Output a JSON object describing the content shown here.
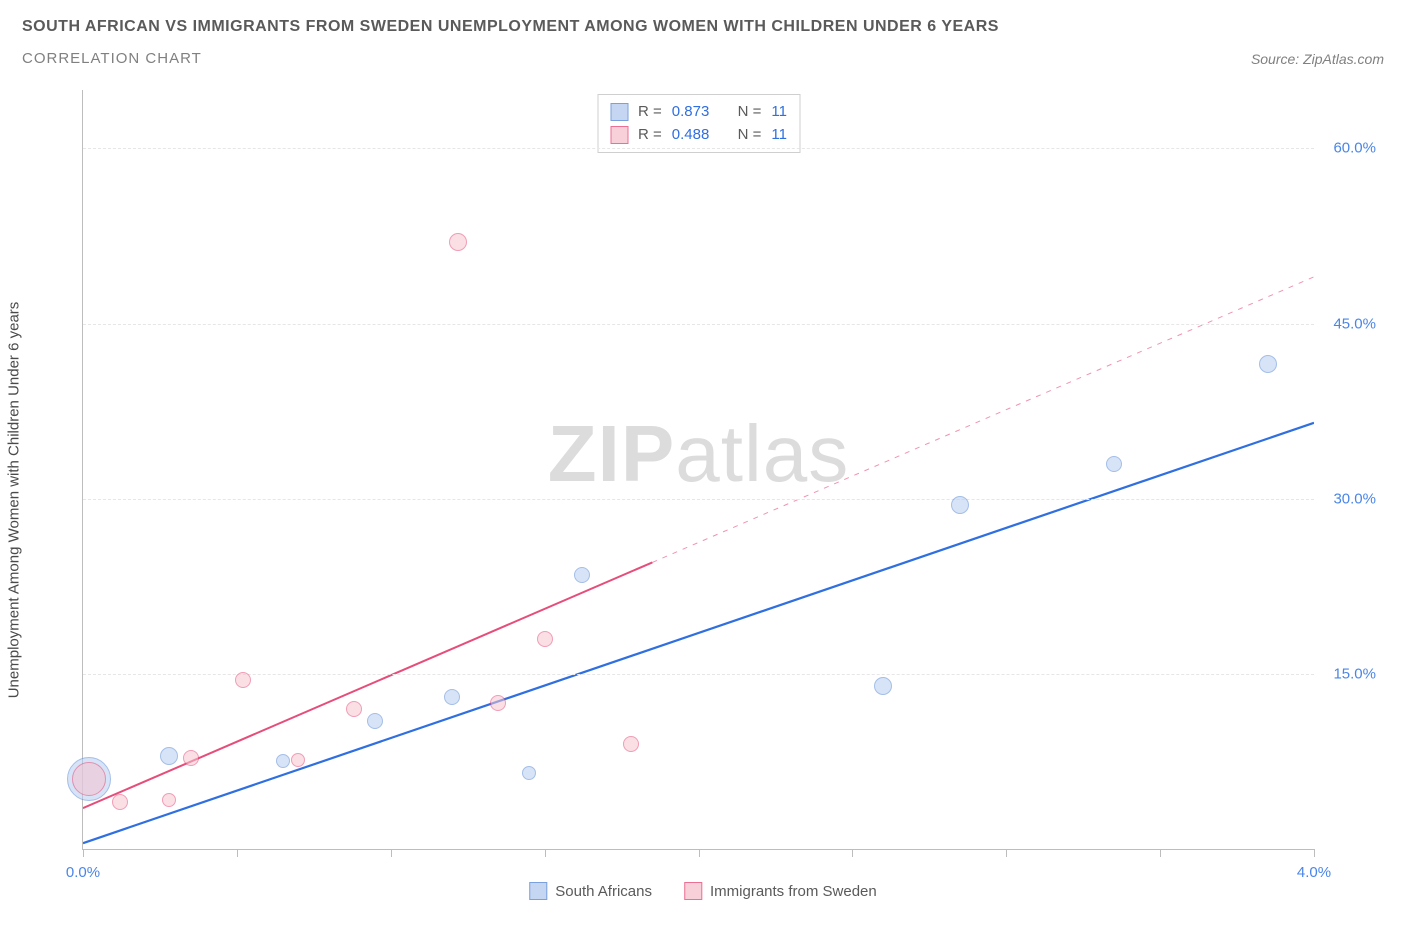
{
  "header": {
    "title": "SOUTH AFRICAN VS IMMIGRANTS FROM SWEDEN UNEMPLOYMENT AMONG WOMEN WITH CHILDREN UNDER 6 YEARS",
    "subtitle": "CORRELATION CHART",
    "source_prefix": "Source: ",
    "source": "ZipAtlas.com"
  },
  "chart": {
    "type": "scatter",
    "y_axis_label": "Unemployment Among Women with Children Under 6 years",
    "xlim": [
      0.0,
      4.0
    ],
    "ylim": [
      0.0,
      65.0
    ],
    "x_ticks": [
      0.0,
      0.5,
      1.0,
      1.5,
      2.0,
      2.5,
      3.0,
      3.5,
      4.0
    ],
    "x_tick_labels": {
      "0": "0.0%",
      "4": "4.0%"
    },
    "y_ticks": [
      15.0,
      30.0,
      45.0,
      60.0
    ],
    "y_tick_labels": [
      "15.0%",
      "30.0%",
      "45.0%",
      "60.0%"
    ],
    "background_color": "#ffffff",
    "grid_color": "#e6e6e6",
    "axis_color": "#bdbdbd",
    "tick_label_color": "#4a86e8",
    "series": [
      {
        "name": "South Africans",
        "fill": "#b7cdf0",
        "stroke": "#5a8ad6",
        "fill_opacity": 0.55,
        "trend_color": "#2f6fe0",
        "trend_width": 2.2,
        "trend_dash_after_x": null,
        "R": 0.873,
        "N": 11,
        "trend_start": {
          "x": 0.0,
          "y": 0.5
        },
        "trend_end": {
          "x": 4.0,
          "y": 36.5
        },
        "points": [
          {
            "x": 0.02,
            "y": 6.0,
            "r": 22
          },
          {
            "x": 0.28,
            "y": 8.0,
            "r": 9
          },
          {
            "x": 0.65,
            "y": 7.5,
            "r": 7
          },
          {
            "x": 0.95,
            "y": 11.0,
            "r": 8
          },
          {
            "x": 1.2,
            "y": 13.0,
            "r": 8
          },
          {
            "x": 1.45,
            "y": 6.5,
            "r": 7
          },
          {
            "x": 1.62,
            "y": 23.5,
            "r": 8
          },
          {
            "x": 2.6,
            "y": 14.0,
            "r": 9
          },
          {
            "x": 2.85,
            "y": 29.5,
            "r": 9
          },
          {
            "x": 3.35,
            "y": 33.0,
            "r": 8
          },
          {
            "x": 3.85,
            "y": 41.5,
            "r": 9
          }
        ]
      },
      {
        "name": "Immigrants from Sweden",
        "fill": "#f6c5d1",
        "stroke": "#e64d7a",
        "fill_opacity": 0.55,
        "trend_color": "#e64d7a",
        "trend_width": 2.0,
        "trend_dash_after_x": 1.85,
        "R": 0.488,
        "N": 11,
        "trend_start": {
          "x": 0.0,
          "y": 3.5
        },
        "trend_end": {
          "x": 4.0,
          "y": 49.0
        },
        "points": [
          {
            "x": 0.02,
            "y": 6.0,
            "r": 17
          },
          {
            "x": 0.12,
            "y": 4.0,
            "r": 8
          },
          {
            "x": 0.28,
            "y": 4.2,
            "r": 7
          },
          {
            "x": 0.35,
            "y": 7.8,
            "r": 8
          },
          {
            "x": 0.52,
            "y": 14.5,
            "r": 8
          },
          {
            "x": 0.7,
            "y": 7.6,
            "r": 7
          },
          {
            "x": 0.88,
            "y": 12.0,
            "r": 8
          },
          {
            "x": 1.22,
            "y": 52.0,
            "r": 9
          },
          {
            "x": 1.35,
            "y": 12.5,
            "r": 8
          },
          {
            "x": 1.5,
            "y": 18.0,
            "r": 8
          },
          {
            "x": 1.78,
            "y": 9.0,
            "r": 8
          }
        ]
      }
    ],
    "stats_legend_labels": {
      "R": "R =",
      "N": "N ="
    },
    "bottom_legend": [
      "South Africans",
      "Immigrants from Sweden"
    ],
    "watermark": {
      "bold": "ZIP",
      "rest": "atlas"
    }
  }
}
